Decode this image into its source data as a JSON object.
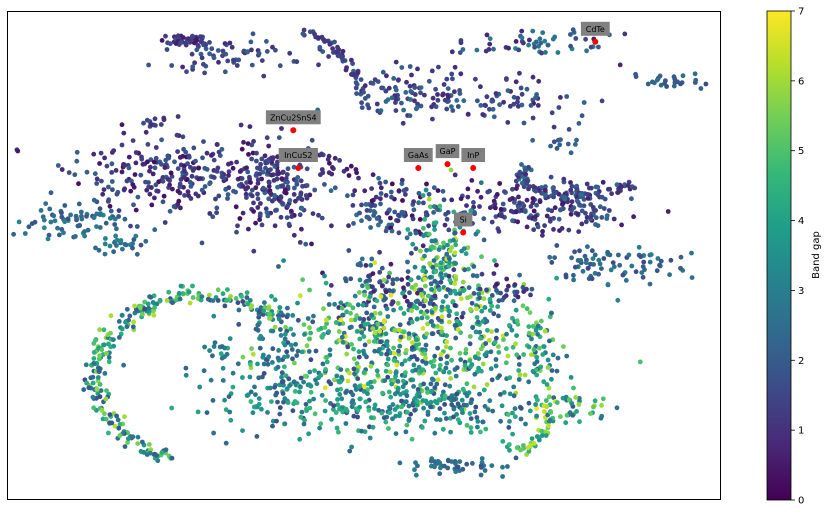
{
  "chart_data": {
    "type": "scatter",
    "title": "",
    "xlabel": "",
    "ylabel": "",
    "axes_ticks_visible": false,
    "xlim": [
      0,
      100
    ],
    "ylim": [
      0,
      100
    ],
    "grid": false,
    "colormap": "viridis",
    "colormap_stops": [
      "#440154",
      "#482878",
      "#3e4989",
      "#31688e",
      "#26828e",
      "#1f9e89",
      "#35b779",
      "#6ece58",
      "#b5de2b",
      "#fde725"
    ],
    "colorbar": {
      "label": "Band gap",
      "min": 0,
      "max": 7,
      "ticks": [
        "0",
        "1",
        "2",
        "3",
        "4",
        "5",
        "6",
        "7"
      ]
    },
    "highlight_color": "#ff0000",
    "annotation_box_color": "#808080",
    "highlighted_materials": [
      {
        "label": "CdTe",
        "x": 82.4,
        "y": 93.7
      },
      {
        "label": "ZnCu2SnS4",
        "x": 40.1,
        "y": 75.6
      },
      {
        "label": "InCuS2",
        "x": 40.8,
        "y": 67.9
      },
      {
        "label": "GaAs",
        "x": 57.6,
        "y": 67.9
      },
      {
        "label": "GaP",
        "x": 61.7,
        "y": 68.7
      },
      {
        "label": "InP",
        "x": 65.3,
        "y": 67.9
      },
      {
        "label": "Si",
        "x": 63.9,
        "y": 54.7
      }
    ],
    "series": [
      {
        "clusters": [
          {
            "cx": 25.0,
            "cy": 94.0,
            "sx": 2.0,
            "sy": 0.6,
            "n": 40,
            "vmin": 0.4,
            "vmax": 1.6
          },
          {
            "cx": 32.0,
            "cy": 91.0,
            "sx": 5.0,
            "sy": 2.0,
            "n": 70,
            "vmin": 0.8,
            "vmax": 2.2
          },
          {
            "cx": 74.0,
            "cy": 93.5,
            "sx": 6.0,
            "sy": 1.5,
            "n": 55,
            "vmin": 0.6,
            "vmax": 3.2
          },
          {
            "cx": 92.0,
            "cy": 86.0,
            "sx": 3.0,
            "sy": 0.8,
            "n": 25,
            "vmin": 1.6,
            "vmax": 2.6
          },
          {
            "cx": 56.0,
            "cy": 83.0,
            "sx": 3.5,
            "sy": 3.0,
            "n": 90,
            "vmin": 0.8,
            "vmax": 2.6
          },
          {
            "cx": 71.0,
            "cy": 82.0,
            "sx": 6.0,
            "sy": 2.5,
            "n": 70,
            "vmin": 0.6,
            "vmax": 2.4
          },
          {
            "cx": 77.0,
            "cy": 73.0,
            "sx": 2.0,
            "sy": 0.8,
            "n": 10,
            "vmin": 1.6,
            "vmax": 2.6
          },
          {
            "cx": 21.0,
            "cy": 77.0,
            "sx": 0.8,
            "sy": 0.8,
            "n": 12,
            "vmin": 0.6,
            "vmax": 1.8
          },
          {
            "cx": 23.0,
            "cy": 66.0,
            "sx": 7.0,
            "sy": 4.0,
            "n": 260,
            "vmin": 0.2,
            "vmax": 2.2
          },
          {
            "cx": 38.0,
            "cy": 64.0,
            "sx": 3.0,
            "sy": 5.0,
            "n": 170,
            "vmin": 0.3,
            "vmax": 2.4
          },
          {
            "cx": 9.0,
            "cy": 57.0,
            "sx": 4.0,
            "sy": 1.8,
            "n": 70,
            "vmin": 1.6,
            "vmax": 3.4
          },
          {
            "cx": 16.0,
            "cy": 52.0,
            "sx": 2.0,
            "sy": 1.0,
            "n": 25,
            "vmin": 1.8,
            "vmax": 3.2
          },
          {
            "cx": 47.0,
            "cy": 67.0,
            "sx": 2.0,
            "sy": 1.0,
            "n": 15,
            "vmin": 0.3,
            "vmax": 1.2
          },
          {
            "cx": 53.0,
            "cy": 60.0,
            "sx": 4.0,
            "sy": 3.0,
            "n": 110,
            "vmin": 0.2,
            "vmax": 2.6
          },
          {
            "cx": 70.0,
            "cy": 60.0,
            "sx": 6.0,
            "sy": 3.0,
            "n": 120,
            "vmin": 0.3,
            "vmax": 2.4
          },
          {
            "cx": 80.0,
            "cy": 60.0,
            "sx": 3.0,
            "sy": 3.0,
            "n": 90,
            "vmin": 0.5,
            "vmax": 2.4
          },
          {
            "cx": 86.0,
            "cy": 48.0,
            "sx": 5.0,
            "sy": 2.0,
            "n": 80,
            "vmin": 1.5,
            "vmax": 3.0
          },
          {
            "cx": 61.0,
            "cy": 50.0,
            "sx": 2.5,
            "sy": 6.0,
            "n": 150,
            "vmin": 2.0,
            "vmax": 6.5
          },
          {
            "cx": 55.0,
            "cy": 43.0,
            "sx": 5.0,
            "sy": 4.0,
            "n": 130,
            "vmin": 0.4,
            "vmax": 3.2
          },
          {
            "cx": 52.0,
            "cy": 33.0,
            "sx": 8.0,
            "sy": 6.0,
            "n": 380,
            "vmin": 1.5,
            "vmax": 6.8
          },
          {
            "cx": 66.0,
            "cy": 32.0,
            "sx": 6.0,
            "sy": 7.0,
            "n": 200,
            "vmin": 1.5,
            "vmax": 6.5
          },
          {
            "cx": 44.0,
            "cy": 22.0,
            "sx": 9.0,
            "sy": 4.0,
            "n": 220,
            "vmin": 1.4,
            "vmax": 5.0
          },
          {
            "cx": 60.0,
            "cy": 19.0,
            "sx": 7.0,
            "sy": 3.0,
            "n": 160,
            "vmin": 1.6,
            "vmax": 5.0
          },
          {
            "cx": 37.0,
            "cy": 31.0,
            "sx": 2.0,
            "sy": 6.0,
            "n": 60,
            "vmin": 1.6,
            "vmax": 3.8
          },
          {
            "cx": 78.0,
            "cy": 19.0,
            "sx": 3.0,
            "sy": 1.8,
            "n": 45,
            "vmin": 1.6,
            "vmax": 6.8
          },
          {
            "cx": 75.0,
            "cy": 31.0,
            "sx": 1.5,
            "sy": 4.0,
            "n": 40,
            "vmin": 1.8,
            "vmax": 6.5
          },
          {
            "cx": 62.0,
            "cy": 7.0,
            "sx": 4.0,
            "sy": 1.0,
            "n": 45,
            "vmin": 1.8,
            "vmax": 3.0
          },
          {
            "cx": 30.0,
            "cy": 30.0,
            "sx": 1.0,
            "sy": 1.0,
            "n": 10,
            "vmin": 2.2,
            "vmax": 3.2
          },
          {
            "cx": 70.0,
            "cy": 43.0,
            "sx": 2.0,
            "sy": 1.5,
            "n": 25,
            "vmin": 0.5,
            "vmax": 2.4
          }
        ]
      }
    ],
    "arcs": [
      {
        "cx": 27.0,
        "cy": 25.0,
        "rx": 14.5,
        "ry": 17.0,
        "a0": 42.0,
        "a1": 252.0,
        "n": 260,
        "thickness": 0.9,
        "vmin": 1.6,
        "vmax": 6.2
      },
      {
        "cx": 80.0,
        "cy": 66.0,
        "rx": 8.0,
        "ry": 3.8,
        "a0": 150.0,
        "a1": 355.0,
        "n": 90,
        "thickness": 0.5,
        "vmin": 0.6,
        "vmax": 2.6
      },
      {
        "cx": 72.0,
        "cy": 19.0,
        "rx": 4.0,
        "ry": 8.5,
        "a0": 230.0,
        "a1": 360.0,
        "n": 40,
        "thickness": 0.4,
        "vmin": 3.0,
        "vmax": 6.5
      },
      {
        "cx": 40.0,
        "cy": 72.0,
        "rx": 11.0,
        "ry": 24.0,
        "a0": 20.0,
        "a1": 85.0,
        "n": 55,
        "thickness": 0.4,
        "vmin": 0.8,
        "vmax": 2.0
      },
      {
        "cx": 45.0,
        "cy": 68.0,
        "rx": 10.0,
        "ry": 2.5,
        "a0": 90.0,
        "a1": 160.0,
        "n": 30,
        "thickness": 0.3,
        "vmin": 0.6,
        "vmax": 1.8
      }
    ],
    "isolated_points": [
      {
        "x": 92.6,
        "y": 59.0,
        "v": 0.6
      },
      {
        "x": 79.0,
        "y": 71.0,
        "v": 2.2
      },
      {
        "x": 35.0,
        "y": 13.0,
        "v": 2.0
      },
      {
        "x": 48.0,
        "y": 10.0,
        "v": 2.3
      }
    ]
  }
}
